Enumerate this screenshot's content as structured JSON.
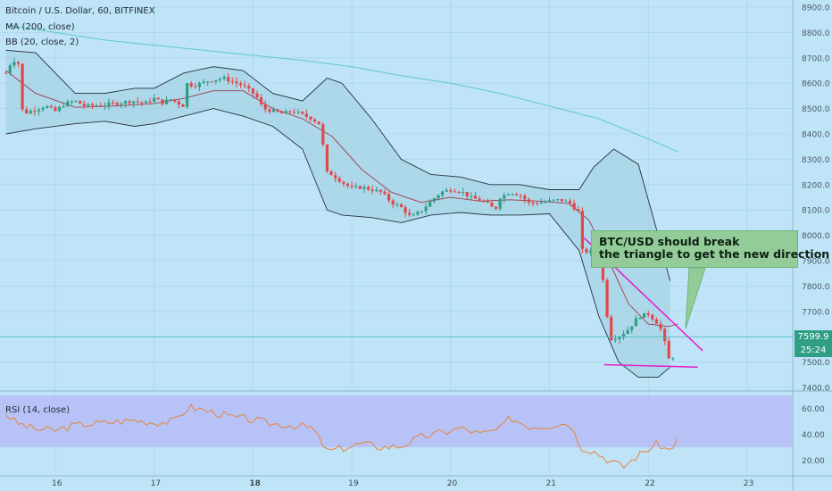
{
  "header": {
    "title": "Bitcoin / U.S. Dollar, 60, BITFINEX",
    "ma_label": "MA (200, close)",
    "bb_label": "BB (20, close, 2)",
    "rsi_label": "RSI (14, close)"
  },
  "annotation": {
    "line1": "BTC/USD should break",
    "line2": "the triangle to get the new direction"
  },
  "price_scale": {
    "current_price": "7599.9",
    "timer": "25:24"
  },
  "colors": {
    "background": "#bfe3f7",
    "up_candle": "#2e9e85",
    "down_candle": "#e0484a",
    "ma_line": "#5fc9c9",
    "bb_fill": "#9fcfe0",
    "bb_line": "#25313d",
    "trendline": "#e61ccd",
    "rsi_line": "#e8833a",
    "rsi_band": "#b4b8f5"
  },
  "chart_data": {
    "type": "candlestick",
    "title": "Bitcoin / U.S. Dollar, 60, BITFINEX",
    "y_ticks": [
      8900,
      8800,
      8700,
      8600,
      8500,
      8400,
      8300,
      8200,
      8100,
      8000,
      7900,
      7800,
      7700,
      7600,
      7500,
      7400
    ],
    "ylim": [
      7380,
      8940
    ],
    "x_ticks": [
      "16",
      "17",
      "18",
      "19",
      "20",
      "21",
      "22",
      "23"
    ],
    "x_day_start": 15.5,
    "current_price": 7599.9,
    "close_path": [
      [
        15.5,
        8640
      ],
      [
        15.55,
        8680
      ],
      [
        15.62,
        8700
      ],
      [
        15.67,
        8480
      ],
      [
        15.75,
        8490
      ],
      [
        15.9,
        8510
      ],
      [
        16.0,
        8490
      ],
      [
        16.1,
        8520
      ],
      [
        16.2,
        8530
      ],
      [
        16.3,
        8510
      ],
      [
        16.5,
        8515
      ],
      [
        16.6,
        8520
      ],
      [
        16.8,
        8530
      ],
      [
        16.9,
        8520
      ],
      [
        17.0,
        8540
      ],
      [
        17.1,
        8520
      ],
      [
        17.15,
        8540
      ],
      [
        17.3,
        8510
      ],
      [
        17.32,
        8600
      ],
      [
        17.4,
        8590
      ],
      [
        17.55,
        8610
      ],
      [
        17.7,
        8620
      ],
      [
        17.8,
        8605
      ],
      [
        17.9,
        8590
      ],
      [
        18.0,
        8560
      ],
      [
        18.05,
        8540
      ],
      [
        18.1,
        8500
      ],
      [
        18.3,
        8480
      ],
      [
        18.4,
        8490
      ],
      [
        18.6,
        8460
      ],
      [
        18.7,
        8430
      ],
      [
        18.72,
        8250
      ],
      [
        18.8,
        8240
      ],
      [
        18.9,
        8210
      ],
      [
        19.0,
        8185
      ],
      [
        19.1,
        8190
      ],
      [
        19.3,
        8170
      ],
      [
        19.4,
        8130
      ],
      [
        19.5,
        8110
      ],
      [
        19.6,
        8070
      ],
      [
        19.7,
        8095
      ],
      [
        19.8,
        8135
      ],
      [
        19.9,
        8170
      ],
      [
        20.0,
        8180
      ],
      [
        20.1,
        8175
      ],
      [
        20.2,
        8150
      ],
      [
        20.35,
        8130
      ],
      [
        20.45,
        8100
      ],
      [
        20.5,
        8150
      ],
      [
        20.6,
        8170
      ],
      [
        20.7,
        8160
      ],
      [
        20.8,
        8125
      ],
      [
        20.9,
        8130
      ],
      [
        21.0,
        8135
      ],
      [
        21.1,
        8140
      ],
      [
        21.2,
        8130
      ],
      [
        21.3,
        8090
      ],
      [
        21.33,
        7940
      ],
      [
        21.45,
        7930
      ],
      [
        21.52,
        7870
      ],
      [
        21.57,
        7760
      ],
      [
        21.6,
        7590
      ],
      [
        21.7,
        7600
      ],
      [
        21.8,
        7630
      ],
      [
        21.9,
        7680
      ],
      [
        22.0,
        7690
      ],
      [
        22.1,
        7650
      ],
      [
        22.15,
        7610
      ],
      [
        22.2,
        7510
      ],
      [
        22.25,
        7520
      ],
      [
        22.28,
        7599.9
      ]
    ],
    "ma200_path": [
      [
        15.5,
        8830
      ],
      [
        16.0,
        8800
      ],
      [
        16.5,
        8770
      ],
      [
        17.0,
        8750
      ],
      [
        17.5,
        8730
      ],
      [
        18.0,
        8710
      ],
      [
        18.5,
        8690
      ],
      [
        19.0,
        8665
      ],
      [
        19.5,
        8630
      ],
      [
        20.0,
        8600
      ],
      [
        20.5,
        8560
      ],
      [
        21.0,
        8510
      ],
      [
        21.5,
        8460
      ],
      [
        22.0,
        8380
      ],
      [
        22.3,
        8330
      ]
    ],
    "bb_upper_path": [
      [
        15.5,
        8730
      ],
      [
        15.8,
        8720
      ],
      [
        16.2,
        8560
      ],
      [
        16.5,
        8560
      ],
      [
        16.8,
        8580
      ],
      [
        17.0,
        8580
      ],
      [
        17.3,
        8640
      ],
      [
        17.6,
        8665
      ],
      [
        17.9,
        8650
      ],
      [
        18.2,
        8560
      ],
      [
        18.5,
        8530
      ],
      [
        18.75,
        8620
      ],
      [
        18.9,
        8600
      ],
      [
        19.2,
        8460
      ],
      [
        19.5,
        8300
      ],
      [
        19.8,
        8240
      ],
      [
        20.1,
        8230
      ],
      [
        20.4,
        8200
      ],
      [
        20.7,
        8200
      ],
      [
        21.0,
        8180
      ],
      [
        21.3,
        8180
      ],
      [
        21.45,
        8270
      ],
      [
        21.65,
        8340
      ],
      [
        21.9,
        8280
      ],
      [
        22.1,
        8000
      ],
      [
        22.22,
        7820
      ]
    ],
    "bb_lower_path": [
      [
        15.5,
        8400
      ],
      [
        15.8,
        8420
      ],
      [
        16.2,
        8440
      ],
      [
        16.5,
        8450
      ],
      [
        16.8,
        8430
      ],
      [
        17.0,
        8440
      ],
      [
        17.3,
        8470
      ],
      [
        17.6,
        8500
      ],
      [
        17.9,
        8470
      ],
      [
        18.2,
        8430
      ],
      [
        18.5,
        8340
      ],
      [
        18.75,
        8100
      ],
      [
        18.9,
        8080
      ],
      [
        19.2,
        8070
      ],
      [
        19.5,
        8050
      ],
      [
        19.8,
        8080
      ],
      [
        20.1,
        8090
      ],
      [
        20.4,
        8080
      ],
      [
        20.7,
        8080
      ],
      [
        21.0,
        8085
      ],
      [
        21.3,
        7940
      ],
      [
        21.5,
        7680
      ],
      [
        21.7,
        7500
      ],
      [
        21.9,
        7440
      ],
      [
        22.1,
        7440
      ],
      [
        22.22,
        7480
      ]
    ],
    "bb_basis_path": [
      [
        15.5,
        8650
      ],
      [
        15.8,
        8560
      ],
      [
        16.2,
        8505
      ],
      [
        16.6,
        8510
      ],
      [
        17.0,
        8520
      ],
      [
        17.3,
        8540
      ],
      [
        17.6,
        8570
      ],
      [
        17.9,
        8570
      ],
      [
        18.2,
        8500
      ],
      [
        18.5,
        8460
      ],
      [
        18.8,
        8390
      ],
      [
        19.1,
        8260
      ],
      [
        19.4,
        8170
      ],
      [
        19.7,
        8130
      ],
      [
        20.0,
        8150
      ],
      [
        20.3,
        8135
      ],
      [
        20.6,
        8140
      ],
      [
        20.9,
        8135
      ],
      [
        21.2,
        8125
      ],
      [
        21.4,
        8060
      ],
      [
        21.6,
        7900
      ],
      [
        21.8,
        7730
      ],
      [
        22.0,
        7650
      ],
      [
        22.2,
        7640
      ],
      [
        22.3,
        7650
      ]
    ],
    "triangle_upper": [
      [
        21.35,
        7990
      ],
      [
        22.55,
        7545
      ]
    ],
    "triangle_lower": [
      [
        21.55,
        7490
      ],
      [
        22.5,
        7480
      ]
    ],
    "rsi": {
      "label": "RSI (14, close)",
      "y_ticks": [
        60.0,
        40.0,
        20.0
      ],
      "ylim": [
        10,
        72
      ],
      "band": [
        30,
        70
      ],
      "path": [
        [
          15.5,
          56
        ],
        [
          15.6,
          49
        ],
        [
          15.8,
          44
        ],
        [
          16.0,
          43
        ],
        [
          16.2,
          47
        ],
        [
          16.5,
          49
        ],
        [
          16.8,
          51
        ],
        [
          17.0,
          49
        ],
        [
          17.2,
          50
        ],
        [
          17.35,
          61
        ],
        [
          17.6,
          57
        ],
        [
          17.8,
          53
        ],
        [
          18.0,
          51
        ],
        [
          18.2,
          48
        ],
        [
          18.4,
          47
        ],
        [
          18.6,
          45
        ],
        [
          18.75,
          27
        ],
        [
          18.9,
          29
        ],
        [
          19.1,
          33
        ],
        [
          19.3,
          30
        ],
        [
          19.5,
          31
        ],
        [
          19.7,
          38
        ],
        [
          19.9,
          41
        ],
        [
          20.1,
          45
        ],
        [
          20.3,
          40
        ],
        [
          20.5,
          44
        ],
        [
          20.6,
          53
        ],
        [
          20.8,
          46
        ],
        [
          21.0,
          47
        ],
        [
          21.2,
          49
        ],
        [
          21.32,
          30
        ],
        [
          21.45,
          27
        ],
        [
          21.6,
          20
        ],
        [
          21.75,
          15
        ],
        [
          21.9,
          24
        ],
        [
          22.1,
          33
        ],
        [
          22.2,
          27
        ],
        [
          22.3,
          36
        ]
      ]
    }
  }
}
